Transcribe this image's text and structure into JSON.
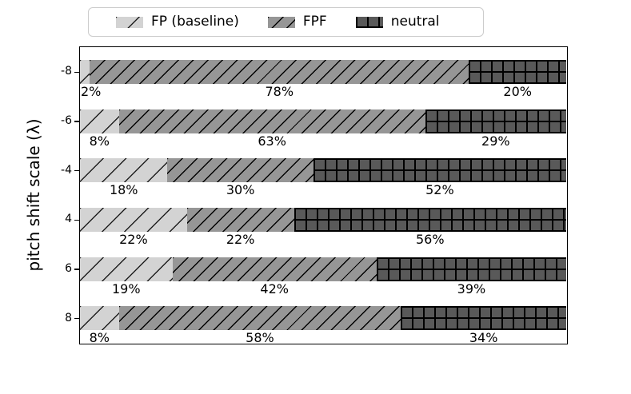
{
  "legend": {
    "position": "upper center, outside plot",
    "border_color": "#cccccc"
  },
  "chart_data": {
    "type": "bar",
    "orientation": "horizontal-stacked",
    "title": "",
    "xlabel": "",
    "ylabel": "pitch shift scale (λ)",
    "xlim": [
      0,
      100
    ],
    "grid": false,
    "legend_position": "top-center-outside",
    "categories": [
      "-8",
      "-6",
      "-4",
      "4",
      "6",
      "8"
    ],
    "series": [
      {
        "name": "FP (baseline)",
        "color": "#d3d3d3",
        "hatch": "/",
        "values": [
          2,
          8,
          18,
          22,
          19,
          8
        ]
      },
      {
        "name": "FPF",
        "color": "#969696",
        "hatch": "//",
        "values": [
          78,
          63,
          30,
          22,
          42,
          58
        ]
      },
      {
        "name": "neutral",
        "color": "#595959",
        "hatch": "+",
        "values": [
          20,
          29,
          52,
          56,
          39,
          34
        ]
      }
    ],
    "bar_labels": [
      [
        "2%",
        "78%",
        "20%"
      ],
      [
        "8%",
        "63%",
        "29%"
      ],
      [
        "18%",
        "30%",
        "52%"
      ],
      [
        "22%",
        "22%",
        "56%"
      ],
      [
        "19%",
        "42%",
        "39%"
      ],
      [
        "8%",
        "58%",
        "34%"
      ]
    ]
  }
}
